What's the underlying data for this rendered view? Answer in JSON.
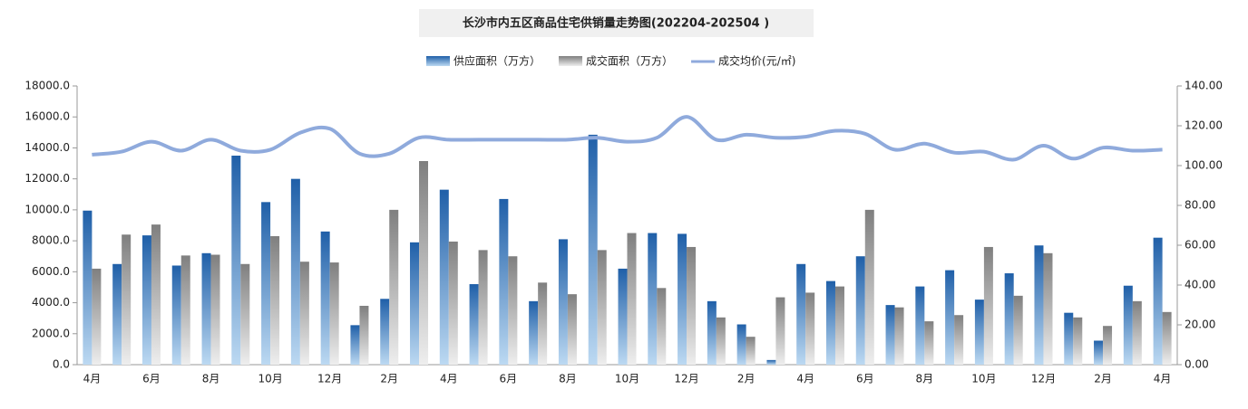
{
  "chart_data": {
    "type": "bar-line",
    "title": "长沙市内五区商品住宅供销量走势图(202204-202504 )",
    "categories": [
      "4月",
      null,
      "6月",
      null,
      "8月",
      null,
      "10月",
      null,
      "12月",
      null,
      "2月",
      null,
      "4月",
      null,
      "6月",
      null,
      "8月",
      null,
      "10月",
      null,
      "12月",
      null,
      "2月",
      null,
      "4月",
      null,
      "6月",
      null,
      "8月",
      null,
      "10月",
      null,
      "12月",
      null,
      "2月",
      null,
      "4月"
    ],
    "series": [
      {
        "name": "供应面积（万方）",
        "color": "#2e75b6",
        "type": "bar",
        "values": [
          9950,
          6500,
          8350,
          6400,
          7200,
          13500,
          10500,
          12000,
          8600,
          2550,
          4250,
          7900,
          11300,
          5200,
          10700,
          4100,
          8100,
          14850,
          6200,
          8500,
          8450,
          4100,
          2600,
          300,
          6500,
          5400,
          7000,
          3850,
          5050,
          6100,
          4200,
          5900,
          7700,
          3350,
          1550,
          5100,
          8200
        ]
      },
      {
        "name": "成交面积（万方）",
        "color": "#9a9a9a",
        "type": "bar",
        "values": [
          6200,
          8400,
          9050,
          7050,
          7100,
          6500,
          8300,
          6650,
          6600,
          3800,
          10000,
          13150,
          7950,
          7400,
          7000,
          5300,
          4550,
          7400,
          8500,
          4950,
          7600,
          3050,
          1800,
          4350,
          4650,
          5050,
          10000,
          3700,
          2800,
          3200,
          7600,
          4450,
          7200,
          3050,
          2500,
          4100,
          3400
        ]
      },
      {
        "name": "成交均价(元/㎡)",
        "color": "#8faadc",
        "type": "line",
        "axis": "y2",
        "values": [
          105.5,
          107,
          112,
          107.5,
          113,
          107.5,
          108,
          116.5,
          118.5,
          106,
          106,
          114,
          113,
          113,
          113,
          113,
          113,
          114,
          112,
          114,
          124.5,
          113,
          115.5,
          114,
          114.5,
          117.5,
          116,
          108,
          111,
          106.5,
          107,
          103,
          110,
          103.5,
          109,
          107.5,
          108
        ]
      }
    ],
    "ylim": [
      0,
      18000
    ],
    "yticks": [
      {
        "value": 0,
        "label": "0.0"
      },
      {
        "value": 2000,
        "label": "2000.0"
      },
      {
        "value": 4000,
        "label": "4000.0"
      },
      {
        "value": 6000,
        "label": "6000.0"
      },
      {
        "value": 8000,
        "label": "8000.0"
      },
      {
        "value": 10000,
        "label": "10000.0"
      },
      {
        "value": 12000,
        "label": "12000.0"
      },
      {
        "value": 14000,
        "label": "14000.0"
      },
      {
        "value": 16000,
        "label": "16000.0"
      },
      {
        "value": 18000,
        "label": "18000.0"
      }
    ],
    "y2lim": [
      0,
      140
    ],
    "y2ticks": [
      {
        "value": 0,
        "label": "0.00"
      },
      {
        "value": 20,
        "label": "20.00"
      },
      {
        "value": 40,
        "label": "40.00"
      },
      {
        "value": 60,
        "label": "60.00"
      },
      {
        "value": 80,
        "label": "80.00"
      },
      {
        "value": 100,
        "label": "100.00"
      },
      {
        "value": 120,
        "label": "120.00"
      },
      {
        "value": 140,
        "label": "140.00"
      }
    ],
    "legend": "top"
  }
}
